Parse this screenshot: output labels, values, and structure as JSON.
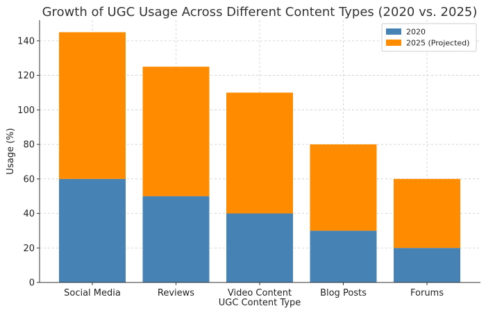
{
  "chart_data": {
    "type": "bar",
    "stacked": true,
    "title": "Growth of UGC Usage Across Different Content Types (2020 vs. 2025)",
    "xlabel": "UGC Content Type",
    "ylabel": "Usage (%)",
    "categories": [
      "Social Media",
      "Reviews",
      "Video Content",
      "Blog Posts",
      "Forums"
    ],
    "series": [
      {
        "name": "2020",
        "color": "#4682b4",
        "values": [
          60,
          50,
          40,
          30,
          20
        ]
      },
      {
        "name": "2025 (Projected)",
        "color": "#ff8c00",
        "values": [
          85,
          75,
          70,
          50,
          40
        ]
      }
    ],
    "ylim": [
      0,
      152
    ],
    "yticks": [
      0,
      20,
      40,
      60,
      80,
      100,
      120,
      140
    ],
    "grid": true,
    "legend_position": "top-right"
  }
}
